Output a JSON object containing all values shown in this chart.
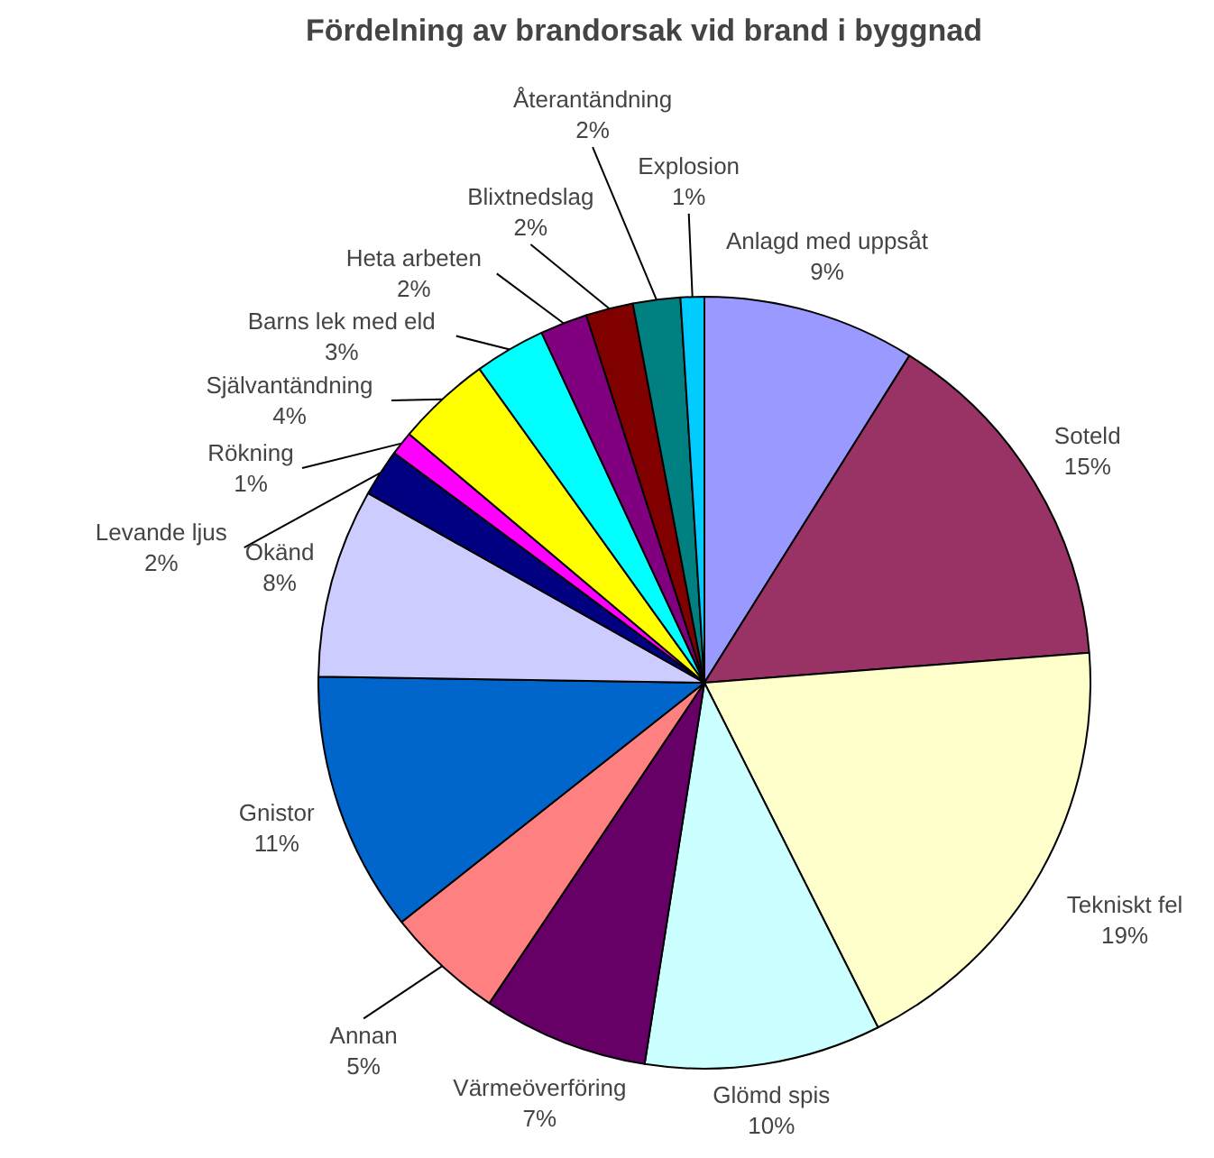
{
  "chart_data": {
    "type": "pie",
    "title": "Fördelning av brandorsak vid brand i byggnad",
    "categories": [
      "Anlagd med uppsåt",
      "Soteld",
      "Tekniskt fel",
      "Glömd spis",
      "Värmeöverföring",
      "Annan",
      "Gnistor",
      "Okänd",
      "Levande ljus",
      "Rökning",
      "Självantändning",
      "Barns lek med eld",
      "Heta arbeten",
      "Blixtnedslag",
      "Återantändning",
      "Explosion"
    ],
    "values": [
      9,
      15,
      19,
      10,
      7,
      5,
      11,
      8,
      2,
      1,
      4,
      3,
      2,
      2,
      2,
      1
    ],
    "value_labels": [
      "9%",
      "15%",
      "19%",
      "10%",
      "7%",
      "5%",
      "11%",
      "8%",
      "2%",
      "1%",
      "4%",
      "3%",
      "2%",
      "2%",
      "2%",
      "1%"
    ],
    "colors": [
      "#9999ff",
      "#993366",
      "#ffffcc",
      "#ccffff",
      "#660066",
      "#ff8080",
      "#0066cc",
      "#ccccff",
      "#000080",
      "#ff00ff",
      "#ffff00",
      "#00ffff",
      "#800080",
      "#800000",
      "#008080",
      "#00ccff"
    ],
    "legend": false
  }
}
